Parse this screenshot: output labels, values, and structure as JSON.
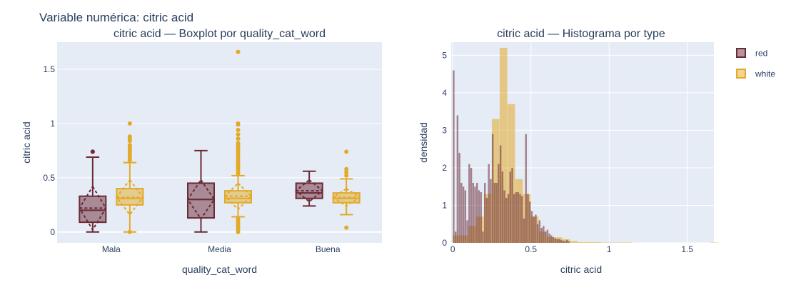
{
  "title": "Variable numérica: citric acid",
  "colors": {
    "red": "#6b2a35",
    "white": "#e3a928",
    "plot_bg": "#e5ecf6",
    "grid": "#ffffff"
  },
  "legend": {
    "placement": "top-right",
    "items": [
      {
        "name": "red",
        "color": "#6b2a35"
      },
      {
        "name": "white",
        "color": "#e3a928"
      }
    ]
  },
  "chart_data": [
    {
      "type": "box",
      "title": "citric acid — Boxplot por quality_cat_word",
      "xlabel": "quality_cat_word",
      "ylabel": "citric acid",
      "categories": [
        "Mala",
        "Media",
        "Buena"
      ],
      "ylim": [
        -0.1,
        1.75
      ],
      "yticks": [
        0,
        0.5,
        1,
        1.5
      ],
      "ytick_labels": [
        "0",
        "0.5",
        "1",
        "1.5"
      ],
      "series": [
        {
          "name": "red",
          "color": "#6b2a35",
          "boxes": [
            {
              "category": "Mala",
              "min": 0,
              "q1": 0.09,
              "median": 0.2,
              "mean": 0.22,
              "q3": 0.33,
              "max": 0.69,
              "sd": 0.2,
              "outliers": [
                0.74,
                0.74
              ]
            },
            {
              "category": "Media",
              "min": 0,
              "q1": 0.13,
              "median": 0.3,
              "mean": 0.3,
              "q3": 0.45,
              "max": 0.75,
              "sd": 0.18,
              "outliers": []
            },
            {
              "category": "Buena",
              "min": 0.24,
              "q1": 0.31,
              "median": 0.36,
              "mean": 0.38,
              "q3": 0.45,
              "max": 0.56,
              "sd": 0.1,
              "outliers": []
            }
          ]
        },
        {
          "name": "white",
          "color": "#e3a928",
          "boxes": [
            {
              "category": "Mala",
              "min": 0,
              "q1": 0.25,
              "median": 0.31,
              "mean": 0.32,
              "q3": 0.4,
              "max": 0.64,
              "sd": 0.16,
              "outliers": [
                0.66,
                0.68,
                0.7,
                0.72,
                0.74,
                0.76,
                0.78,
                0.8,
                0.84,
                0.86,
                0.88,
                1.0,
                0.0
              ]
            },
            {
              "category": "Media",
              "min": 0.14,
              "q1": 0.27,
              "median": 0.31,
              "mean": 0.33,
              "q3": 0.38,
              "max": 0.52,
              "sd": 0.12,
              "outliers": [
                0.0,
                0.02,
                0.04,
                0.06,
                0.08,
                0.1,
                0.12,
                0.54,
                0.56,
                0.58,
                0.6,
                0.62,
                0.64,
                0.66,
                0.68,
                0.7,
                0.72,
                0.74,
                0.76,
                0.78,
                0.8,
                0.82,
                0.86,
                0.9,
                0.94,
                0.99,
                1.0,
                1.66
              ]
            },
            {
              "category": "Buena",
              "min": 0.16,
              "q1": 0.27,
              "median": 0.31,
              "mean": 0.32,
              "q3": 0.36,
              "max": 0.49,
              "sd": 0.08,
              "outliers": [
                0.04,
                0.52,
                0.55,
                0.58,
                0.74
              ]
            }
          ]
        }
      ]
    },
    {
      "type": "histogram",
      "title": "citric acid — Histograma por type",
      "xlabel": "citric acid",
      "ylabel": "densidad",
      "xlim": [
        -0.01,
        1.67
      ],
      "ylim": [
        0,
        5.35
      ],
      "xticks": [
        0,
        0.5,
        1,
        1.5
      ],
      "xtick_labels": [
        "0",
        "0.5",
        "1",
        "1.5"
      ],
      "yticks": [
        0,
        1,
        2,
        3,
        4,
        5
      ],
      "ytick_labels": [
        "0",
        "1",
        "2",
        "3",
        "4",
        "5"
      ],
      "series": [
        {
          "name": "white",
          "color": "#e3a928",
          "bin_start": 0,
          "bin_width": 0.05,
          "values": [
            0.2,
            0.2,
            0.45,
            0.7,
            1.3,
            3.3,
            5.2,
            3.7,
            1.7,
            1.3,
            0.7,
            0.3,
            0.15,
            0.15,
            0.1,
            0.05,
            0.02,
            0.02,
            0.02,
            0.01,
            0.01,
            0.01,
            0.01,
            0,
            0,
            0,
            0,
            0,
            0,
            0,
            0,
            0,
            0,
            0.01
          ]
        },
        {
          "name": "red",
          "color": "#6b2a35",
          "bin_start": 0,
          "bin_width": 0.0125,
          "values": [
            4.6,
            0.3,
            3.4,
            2.4,
            1.6,
            1.5,
            1.4,
            0.6,
            2.1,
            2.0,
            1.6,
            1.5,
            1.6,
            1.4,
            1.35,
            0.3,
            1.6,
            1.2,
            2.1,
            1.7,
            2.9,
            1.6,
            1.6,
            2.1,
            2.6,
            1.9,
            1.4,
            1.2,
            1.3,
            1.9,
            2.0,
            1.3,
            1.35,
            1.35,
            1.3,
            1.25,
            0.65,
            2.9,
            1.3,
            1.1,
            0.85,
            0.7,
            0.75,
            0.5,
            0.6,
            0.4,
            0.45,
            0.3,
            0.35,
            0.25,
            0.2,
            0.15,
            0.12,
            0.1,
            0.1,
            0.08,
            0.06,
            0.05,
            0.08,
            0.04
          ]
        }
      ]
    }
  ]
}
